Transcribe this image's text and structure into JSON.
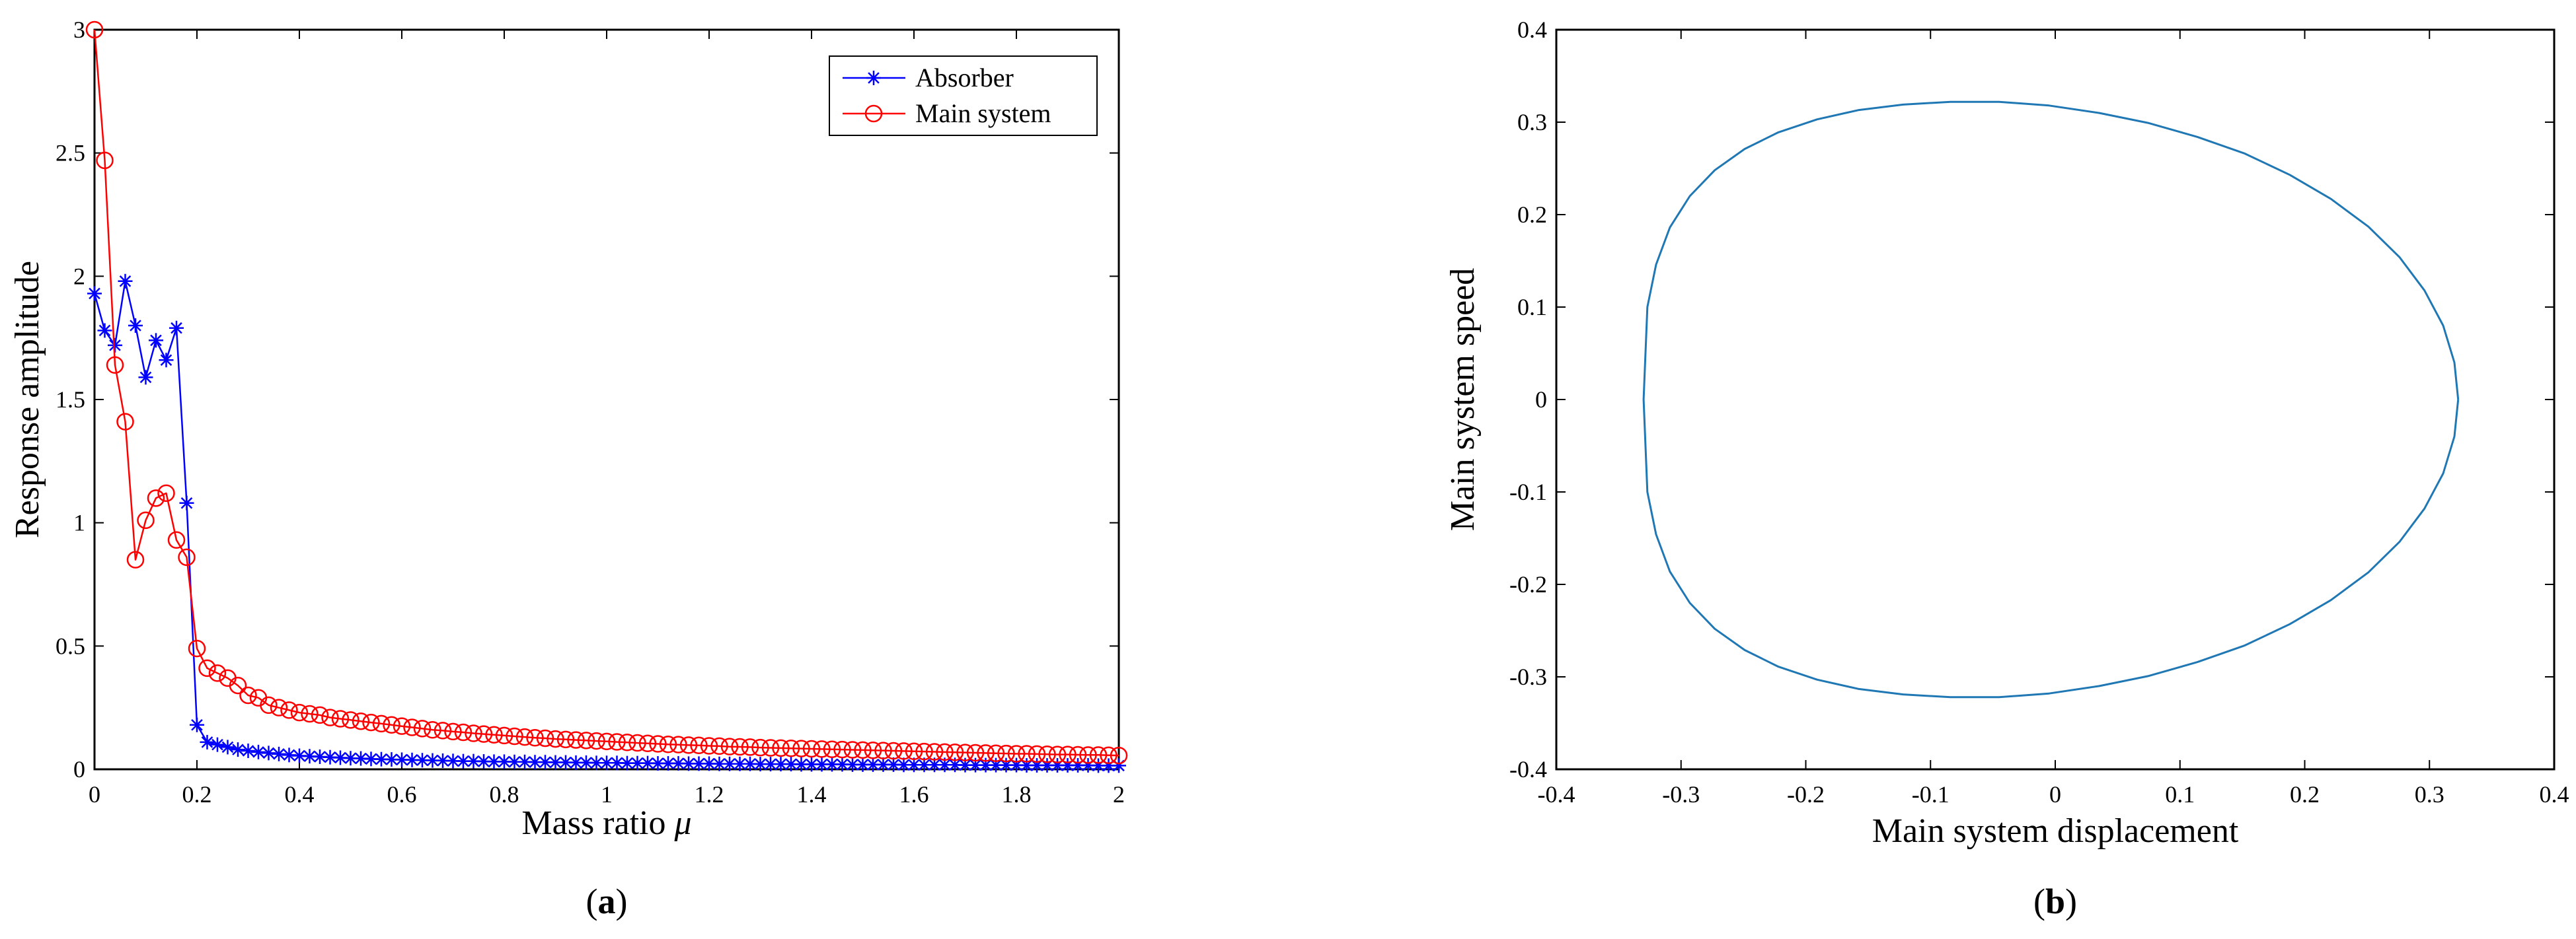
{
  "chart_data": [
    {
      "type": "line",
      "panel_label": "a",
      "xlabel": "Mass ratio",
      "xlabel_symbol": "μ",
      "ylabel": "Response amplitude",
      "xlim": [
        0,
        2
      ],
      "ylim": [
        0,
        3
      ],
      "xticks": [
        0,
        0.2,
        0.4,
        0.6,
        0.8,
        1,
        1.2,
        1.4,
        1.6,
        1.8,
        2
      ],
      "xtick_labels": [
        "0",
        "0.2",
        "0.4",
        "0.6",
        "0.8",
        "1",
        "1.2",
        "1.4",
        "1.6",
        "1.8",
        "2"
      ],
      "yticks": [
        0,
        0.5,
        1,
        1.5,
        2,
        2.5,
        3
      ],
      "ytick_labels": [
        "0",
        "0.5",
        "1",
        "1.5",
        "2",
        "2.5",
        "3"
      ],
      "grid": false,
      "legend_position": "top-right",
      "series": [
        {
          "name": "Absorber",
          "color": "#0000ff",
          "marker": "asterisk",
          "x": [
            0,
            0.02,
            0.04,
            0.06,
            0.08,
            0.1,
            0.12,
            0.14,
            0.16,
            0.18,
            0.2,
            0.22,
            0.24,
            0.26,
            0.28,
            0.3,
            0.32,
            0.34,
            0.36,
            0.38,
            0.4,
            0.42,
            0.44,
            0.46,
            0.48,
            0.5,
            0.52,
            0.54,
            0.56,
            0.58,
            0.6,
            0.62,
            0.64,
            0.66,
            0.68,
            0.7,
            0.72,
            0.74,
            0.76,
            0.78,
            0.8,
            0.82,
            0.84,
            0.86,
            0.88,
            0.9,
            0.92,
            0.94,
            0.96,
            0.98,
            1,
            1.02,
            1.04,
            1.06,
            1.08,
            1.1,
            1.12,
            1.14,
            1.16,
            1.18,
            1.2,
            1.22,
            1.24,
            1.26,
            1.28,
            1.3,
            1.32,
            1.34,
            1.36,
            1.38,
            1.4,
            1.42,
            1.44,
            1.46,
            1.48,
            1.5,
            1.52,
            1.54,
            1.56,
            1.58,
            1.6,
            1.62,
            1.64,
            1.66,
            1.68,
            1.7,
            1.72,
            1.74,
            1.76,
            1.78,
            1.8,
            1.82,
            1.84,
            1.86,
            1.88,
            1.9,
            1.92,
            1.94,
            1.96,
            1.98,
            2
          ],
          "y": [
            1.93,
            1.78,
            1.72,
            1.98,
            1.8,
            1.59,
            1.74,
            1.66,
            1.79,
            1.08,
            0.18,
            0.11,
            0.1,
            0.09,
            0.08,
            0.075,
            0.07,
            0.066,
            0.062,
            0.058,
            0.055,
            0.053,
            0.051,
            0.049,
            0.047,
            0.045,
            0.044,
            0.042,
            0.041,
            0.04,
            0.039,
            0.038,
            0.037,
            0.036,
            0.035,
            0.034,
            0.033,
            0.033,
            0.032,
            0.031,
            0.031,
            0.03,
            0.03,
            0.029,
            0.029,
            0.028,
            0.028,
            0.027,
            0.027,
            0.026,
            0.026,
            0.026,
            0.025,
            0.025,
            0.025,
            0.024,
            0.024,
            0.024,
            0.023,
            0.023,
            0.023,
            0.022,
            0.022,
            0.022,
            0.022,
            0.021,
            0.021,
            0.021,
            0.021,
            0.02,
            0.02,
            0.02,
            0.02,
            0.02,
            0.019,
            0.019,
            0.019,
            0.019,
            0.019,
            0.018,
            0.018,
            0.018,
            0.018,
            0.018,
            0.018,
            0.017,
            0.017,
            0.017,
            0.017,
            0.017,
            0.017,
            0.016,
            0.016,
            0.016,
            0.016,
            0.016,
            0.016,
            0.016,
            0.015,
            0.015,
            0.015
          ]
        },
        {
          "name": "Main system",
          "color": "#ff0000",
          "marker": "circle",
          "x": [
            0,
            0.02,
            0.04,
            0.06,
            0.08,
            0.1,
            0.12,
            0.14,
            0.16,
            0.18,
            0.2,
            0.22,
            0.24,
            0.26,
            0.28,
            0.3,
            0.32,
            0.34,
            0.36,
            0.38,
            0.4,
            0.42,
            0.44,
            0.46,
            0.48,
            0.5,
            0.52,
            0.54,
            0.56,
            0.58,
            0.6,
            0.62,
            0.64,
            0.66,
            0.68,
            0.7,
            0.72,
            0.74,
            0.76,
            0.78,
            0.8,
            0.82,
            0.84,
            0.86,
            0.88,
            0.9,
            0.92,
            0.94,
            0.96,
            0.98,
            1,
            1.02,
            1.04,
            1.06,
            1.08,
            1.1,
            1.12,
            1.14,
            1.16,
            1.18,
            1.2,
            1.22,
            1.24,
            1.26,
            1.28,
            1.3,
            1.32,
            1.34,
            1.36,
            1.38,
            1.4,
            1.42,
            1.44,
            1.46,
            1.48,
            1.5,
            1.52,
            1.54,
            1.56,
            1.58,
            1.6,
            1.62,
            1.64,
            1.66,
            1.68,
            1.7,
            1.72,
            1.74,
            1.76,
            1.78,
            1.8,
            1.82,
            1.84,
            1.86,
            1.88,
            1.9,
            1.92,
            1.94,
            1.96,
            1.98,
            2
          ],
          "y": [
            3.0,
            2.47,
            1.64,
            1.41,
            0.85,
            1.01,
            1.1,
            1.12,
            0.93,
            0.86,
            0.49,
            0.41,
            0.39,
            0.37,
            0.34,
            0.3,
            0.29,
            0.26,
            0.25,
            0.24,
            0.23,
            0.225,
            0.22,
            0.21,
            0.205,
            0.2,
            0.195,
            0.19,
            0.185,
            0.18,
            0.175,
            0.17,
            0.165,
            0.16,
            0.157,
            0.153,
            0.15,
            0.146,
            0.143,
            0.14,
            0.137,
            0.134,
            0.131,
            0.128,
            0.126,
            0.123,
            0.121,
            0.119,
            0.117,
            0.115,
            0.113,
            0.111,
            0.109,
            0.107,
            0.105,
            0.103,
            0.101,
            0.1,
            0.098,
            0.097,
            0.095,
            0.094,
            0.092,
            0.091,
            0.09,
            0.088,
            0.087,
            0.086,
            0.085,
            0.084,
            0.083,
            0.082,
            0.081,
            0.08,
            0.079,
            0.078,
            0.077,
            0.076,
            0.075,
            0.074,
            0.073,
            0.072,
            0.071,
            0.07,
            0.069,
            0.068,
            0.067,
            0.066,
            0.065,
            0.064,
            0.063,
            0.063,
            0.062,
            0.061,
            0.06,
            0.06,
            0.059,
            0.058,
            0.058,
            0.057,
            0.056
          ]
        }
      ]
    },
    {
      "type": "line",
      "panel_label": "b",
      "xlabel": "Main system displacement",
      "ylabel": "Main system speed",
      "xlim": [
        -0.4,
        0.4
      ],
      "ylim": [
        -0.4,
        0.4
      ],
      "xticks": [
        -0.4,
        -0.3,
        -0.2,
        -0.1,
        0,
        0.1,
        0.2,
        0.3,
        0.4
      ],
      "xtick_labels": [
        "-0.4",
        "-0.3",
        "-0.2",
        "-0.1",
        "0",
        "0.1",
        "0.2",
        "0.3",
        "0.4"
      ],
      "yticks": [
        -0.4,
        -0.3,
        -0.2,
        -0.1,
        0,
        0.1,
        0.2,
        0.3,
        0.4
      ],
      "ytick_labels": [
        "-0.4",
        "-0.3",
        "-0.2",
        "-0.1",
        "0",
        "0.1",
        "0.2",
        "0.3",
        "0.4"
      ],
      "grid": false,
      "series": [
        {
          "color": "#1f77b4",
          "x": [
            0.323,
            0.32,
            0.311,
            0.296,
            0.276,
            0.251,
            0.221,
            0.188,
            0.152,
            0.114,
            0.075,
            0.035,
            -0.005,
            -0.045,
            -0.084,
            -0.122,
            -0.158,
            -0.191,
            -0.222,
            -0.249,
            -0.273,
            -0.293,
            -0.309,
            -0.32,
            -0.327,
            -0.33,
            -0.327,
            -0.32,
            -0.309,
            -0.293,
            -0.273,
            -0.249,
            -0.222,
            -0.191,
            -0.158,
            -0.122,
            -0.084,
            -0.045,
            -0.005,
            0.035,
            0.075,
            0.114,
            0.152,
            0.188,
            0.221,
            0.251,
            0.276,
            0.296,
            0.311,
            0.32,
            0.323
          ],
          "y": [
            0.0,
            0.04,
            0.08,
            0.118,
            0.154,
            0.187,
            0.217,
            0.243,
            0.266,
            0.284,
            0.299,
            0.31,
            0.318,
            0.322,
            0.322,
            0.319,
            0.313,
            0.303,
            0.289,
            0.271,
            0.248,
            0.22,
            0.186,
            0.146,
            0.1,
            0.0,
            -0.1,
            -0.146,
            -0.186,
            -0.22,
            -0.248,
            -0.271,
            -0.289,
            -0.303,
            -0.313,
            -0.319,
            -0.322,
            -0.322,
            -0.318,
            -0.31,
            -0.299,
            -0.284,
            -0.266,
            -0.243,
            -0.217,
            -0.187,
            -0.154,
            -0.118,
            -0.08,
            -0.04,
            0.0
          ]
        }
      ]
    }
  ]
}
